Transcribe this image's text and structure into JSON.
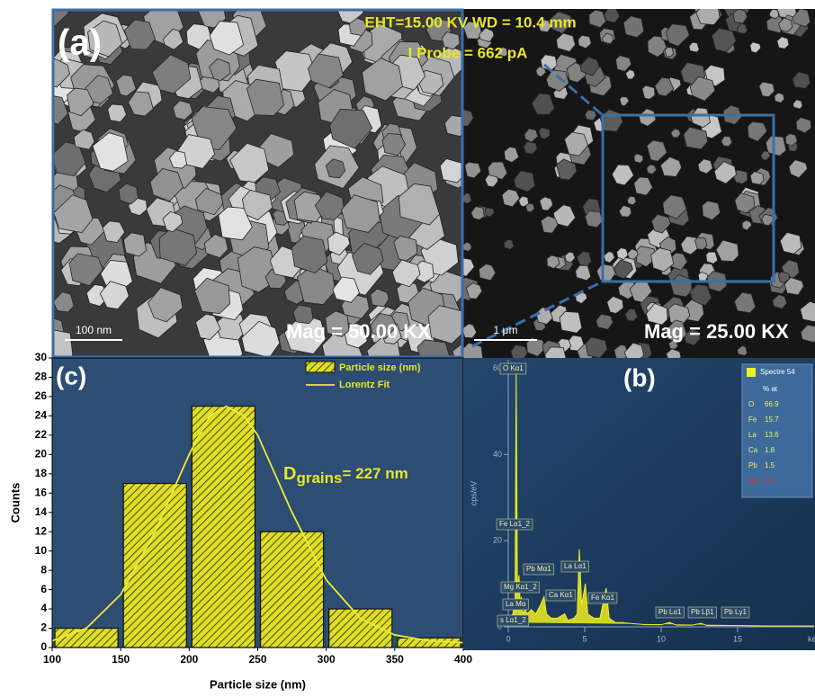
{
  "sem": {
    "panel_label": "(a)",
    "eht": "EHT=15.00 KV WD = 10.4 mm",
    "probe": "I Probe = 662 pA",
    "left": {
      "scale": "100 nm",
      "mag": "Mag = 50.00 KX"
    },
    "right": {
      "scale": "1 μm",
      "mag": "Mag = 25.00 KX"
    }
  },
  "chart_data": [
    {
      "type": "histogram",
      "title": "(c)",
      "x_label": "Particle size (nm)",
      "y_label": "Counts",
      "bins": [
        100,
        150,
        200,
        250,
        300,
        350,
        400
      ],
      "series": [
        {
          "name": "Particle size (nm)",
          "color": "#dede22",
          "values": [
            2,
            17,
            25,
            12,
            4,
            1
          ]
        },
        {
          "name": "Lorentz Fit",
          "type": "line",
          "color": "#ecec3a",
          "x": [
            100,
            125,
            150,
            175,
            200,
            215,
            227,
            240,
            250,
            275,
            300,
            325,
            350,
            375,
            400
          ],
          "values": [
            0.7,
            2,
            5.5,
            12,
            20,
            24,
            25,
            24,
            22,
            14,
            7,
            3,
            1.3,
            0.7,
            0.5
          ]
        }
      ],
      "annotation": {
        "symbol": "D",
        "subscript": "grains",
        "text": "= 227 nm"
      },
      "xlim": [
        100,
        400
      ],
      "xticks": [
        100,
        150,
        200,
        250,
        300,
        350,
        400
      ],
      "ylim": [
        0,
        30
      ],
      "yticks": [
        0,
        2,
        4,
        6,
        8,
        10,
        12,
        14,
        16,
        18,
        20,
        22,
        24,
        26,
        28,
        30
      ]
    },
    {
      "type": "spectrum",
      "title": "(b)",
      "x_label": "ke",
      "y_label": "cps/eV",
      "color": "#f0f020",
      "x": [
        0.1,
        0.3,
        0.45,
        0.52,
        0.6,
        0.7,
        0.78,
        0.85,
        0.95,
        1.1,
        1.25,
        1.5,
        1.8,
        2.1,
        2.34,
        2.5,
        2.8,
        3.2,
        3.69,
        3.9,
        4.3,
        4.51,
        4.65,
        4.8,
        5.04,
        5.2,
        5.6,
        6.0,
        6.4,
        6.6,
        7.0,
        7.5,
        8.0,
        9,
        10,
        10.55,
        11,
        12,
        12.6,
        13,
        14,
        15,
        16,
        17,
        18,
        19,
        20
      ],
      "values": [
        1,
        3,
        6,
        60,
        8,
        12,
        5,
        7,
        3,
        4,
        3,
        4,
        3,
        5,
        7,
        3,
        2,
        2,
        3,
        1.5,
        2,
        3,
        18,
        5,
        10,
        3,
        2,
        2,
        9,
        2,
        1,
        1,
        0.8,
        0.5,
        0.5,
        1,
        0.4,
        0.4,
        0.8,
        0.3,
        0.3,
        0.3,
        0.2,
        0.2,
        0.2,
        0.2,
        0.2
      ],
      "peak_labels": [
        "O Kα1",
        "Fe Lα1_2",
        "Pb Mα1",
        "Mg Kα1_2",
        "La Mα",
        "s Lα1_2",
        "La Lα1",
        "Ca Kα1",
        "Fe Kα1",
        "Pb Lα1",
        "Pb Lβ1",
        "Pb Lγ1"
      ],
      "xlim": [
        0,
        20
      ],
      "xticks": [
        0,
        5,
        10,
        15
      ],
      "ylim": [
        0,
        62
      ],
      "yticks": [
        0,
        20,
        40,
        60
      ],
      "table": {
        "title": "Spectre 54",
        "header": "% at",
        "rows": [
          [
            "O",
            66.9
          ],
          [
            "Fe",
            15.7
          ],
          [
            "La",
            13.6
          ],
          [
            "Ca",
            1.8
          ],
          [
            "Pb",
            1.5
          ],
          [
            "Mg",
            0.6
          ]
        ]
      }
    }
  ]
}
